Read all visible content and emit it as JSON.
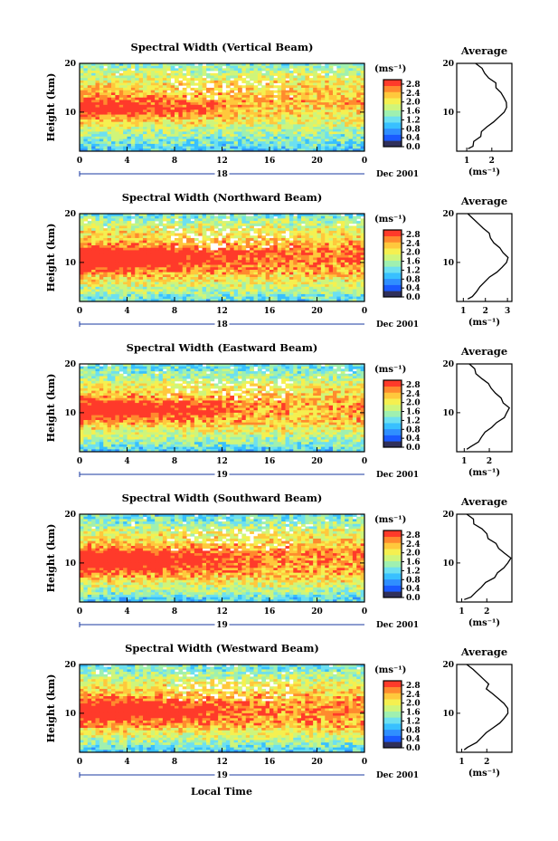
{
  "figure": {
    "xlabel": "Local Time",
    "ylabel": "Height (km)",
    "date_label": "Dec 2001",
    "colorbar_unit": "(ms⁻¹)",
    "avg_title": "Average",
    "avg_xlabel": "(ms⁻¹)"
  },
  "chart_data": [
    {
      "type": "heatmap",
      "title": "Spectral Width (Vertical Beam)",
      "xlabel": "Local Time",
      "ylabel": "Height (km)",
      "x_ticks": [
        "0",
        "4",
        "8",
        "12",
        "16",
        "20",
        "0"
      ],
      "y_ticks": [
        "10",
        "20"
      ],
      "xlim": [
        0,
        24
      ],
      "ylim": [
        2,
        20
      ],
      "day_label": "18",
      "date_label": "Dec 2001",
      "colorbar": {
        "unit": "(ms⁻¹)",
        "ticks": [
          "0.0",
          "0.4",
          "0.8",
          "1.2",
          "1.6",
          "2.0",
          "2.4",
          "2.8"
        ],
        "range": [
          0,
          3.0
        ]
      },
      "average_profile": {
        "title": "Average",
        "xlabel": "(ms⁻¹)",
        "x_ticks": [
          "1",
          "2"
        ],
        "xlim": [
          0.6,
          2.8
        ],
        "y_ticks": [
          "10",
          "20"
        ],
        "ylim": [
          2,
          20
        ],
        "height": [
          2.5,
          3,
          4,
          5,
          6,
          7,
          8,
          9,
          10,
          11,
          12,
          13,
          14,
          15,
          16,
          17,
          18,
          19,
          20
        ],
        "width": [
          1.05,
          1.2,
          1.35,
          1.5,
          1.65,
          1.85,
          2.05,
          2.3,
          2.5,
          2.6,
          2.55,
          2.45,
          2.3,
          2.15,
          2.1,
          1.9,
          1.75,
          1.6,
          1.35
        ]
      }
    },
    {
      "type": "heatmap",
      "title": "Spectral Width (Northward Beam)",
      "xlabel": "Local Time",
      "ylabel": "Height (km)",
      "x_ticks": [
        "0",
        "4",
        "8",
        "12",
        "16",
        "20",
        "0"
      ],
      "y_ticks": [
        "10",
        "20"
      ],
      "xlim": [
        0,
        24
      ],
      "ylim": [
        2,
        20
      ],
      "day_label": "18",
      "date_label": "Dec 2001",
      "colorbar": {
        "unit": "(ms⁻¹)",
        "ticks": [
          "0.0",
          "0.4",
          "0.8",
          "1.2",
          "1.6",
          "2.0",
          "2.4",
          "2.8"
        ],
        "range": [
          0,
          3.0
        ]
      },
      "average_profile": {
        "title": "Average",
        "xlabel": "(ms⁻¹)",
        "x_ticks": [
          "1",
          "2",
          "3"
        ],
        "xlim": [
          0.7,
          3.2
        ],
        "y_ticks": [
          "10",
          "20"
        ],
        "ylim": [
          2,
          20
        ],
        "height": [
          2.5,
          3,
          4,
          5,
          6,
          7,
          8,
          9,
          10,
          11,
          12,
          13,
          14,
          15,
          16,
          17,
          18,
          19,
          20
        ],
        "width": [
          1.2,
          1.4,
          1.6,
          1.8,
          2.0,
          2.2,
          2.45,
          2.7,
          2.9,
          3.0,
          2.85,
          2.65,
          2.45,
          2.2,
          2.1,
          1.9,
          1.7,
          1.5,
          1.2
        ]
      }
    },
    {
      "type": "heatmap",
      "title": "Spectral Width (Eastward Beam)",
      "xlabel": "Local Time",
      "ylabel": "Height (km)",
      "x_ticks": [
        "0",
        "4",
        "8",
        "12",
        "16",
        "20",
        "0"
      ],
      "y_ticks": [
        "10",
        "20"
      ],
      "xlim": [
        0,
        24
      ],
      "ylim": [
        2,
        20
      ],
      "day_label": "19",
      "date_label": "Dec 2001",
      "colorbar": {
        "unit": "(ms⁻¹)",
        "ticks": [
          "0.0",
          "0.4",
          "0.8",
          "1.2",
          "1.6",
          "2.0",
          "2.4",
          "2.8"
        ],
        "range": [
          0,
          3.0
        ]
      },
      "average_profile": {
        "title": "Average",
        "xlabel": "(ms⁻¹)",
        "x_ticks": [
          "1",
          "2"
        ],
        "xlim": [
          0.7,
          2.9
        ],
        "y_ticks": [
          "10",
          "20"
        ],
        "ylim": [
          2,
          20
        ],
        "height": [
          2.5,
          3,
          4,
          5,
          6,
          7,
          8,
          9,
          10,
          11,
          12,
          13,
          14,
          15,
          16,
          17,
          18,
          19,
          20
        ],
        "width": [
          1.1,
          1.3,
          1.5,
          1.7,
          1.9,
          2.1,
          2.35,
          2.55,
          2.7,
          2.75,
          2.6,
          2.4,
          2.2,
          2.05,
          1.95,
          1.7,
          1.5,
          1.35,
          1.2
        ]
      }
    },
    {
      "type": "heatmap",
      "title": "Spectral Width (Southward Beam)",
      "xlabel": "Local Time",
      "ylabel": "Height (km)",
      "x_ticks": [
        "0",
        "4",
        "8",
        "12",
        "16",
        "20",
        "0"
      ],
      "y_ticks": [
        "10",
        "20"
      ],
      "xlim": [
        0,
        24
      ],
      "ylim": [
        2,
        20
      ],
      "day_label": "19",
      "date_label": "Dec 2001",
      "colorbar": {
        "unit": "(ms⁻¹)",
        "ticks": [
          "0.0",
          "0.4",
          "0.8",
          "1.2",
          "1.6",
          "2.0",
          "2.4",
          "2.8"
        ],
        "range": [
          0,
          3.0
        ]
      },
      "average_profile": {
        "title": "Average",
        "xlabel": "(ms⁻¹)",
        "x_ticks": [
          "1",
          "2"
        ],
        "xlim": [
          0.8,
          3.0
        ],
        "y_ticks": [
          "10",
          "20"
        ],
        "ylim": [
          2,
          20
        ],
        "height": [
          2.5,
          3,
          4,
          5,
          6,
          7,
          8,
          9,
          10,
          11,
          12,
          13,
          14,
          15,
          16,
          17,
          18,
          19,
          20
        ],
        "width": [
          1.1,
          1.3,
          1.55,
          1.8,
          2.0,
          2.25,
          2.5,
          2.7,
          2.85,
          2.9,
          2.75,
          2.5,
          2.3,
          2.1,
          2.0,
          1.75,
          1.55,
          1.4,
          1.2
        ]
      }
    },
    {
      "type": "heatmap",
      "title": "Spectral Width (Westward Beam)",
      "xlabel": "Local Time",
      "ylabel": "Height (km)",
      "x_ticks": [
        "0",
        "4",
        "8",
        "12",
        "16",
        "20",
        "0"
      ],
      "y_ticks": [
        "10",
        "20"
      ],
      "xlim": [
        0,
        24
      ],
      "ylim": [
        2,
        20
      ],
      "day_label": "19",
      "date_label": "Dec 2001",
      "colorbar": {
        "unit": "(ms⁻¹)",
        "ticks": [
          "0.0",
          "0.4",
          "0.8",
          "1.2",
          "1.6",
          "2.0",
          "2.4",
          "2.8"
        ],
        "range": [
          0,
          3.0
        ]
      },
      "average_profile": {
        "title": "Average",
        "xlabel": "(ms⁻¹)",
        "x_ticks": [
          "1",
          "2"
        ],
        "xlim": [
          0.8,
          3.0
        ],
        "y_ticks": [
          "10",
          "20"
        ],
        "ylim": [
          2,
          20
        ],
        "height": [
          2.5,
          3,
          4,
          5,
          6,
          7,
          8,
          9,
          10,
          11,
          12,
          13,
          14,
          15,
          16,
          17,
          18,
          19,
          20
        ],
        "width": [
          1.1,
          1.3,
          1.55,
          1.8,
          2.05,
          2.3,
          2.55,
          2.75,
          2.85,
          2.85,
          2.65,
          2.45,
          2.3,
          2.05,
          2.05,
          1.8,
          1.6,
          1.45,
          1.2
        ]
      }
    }
  ]
}
